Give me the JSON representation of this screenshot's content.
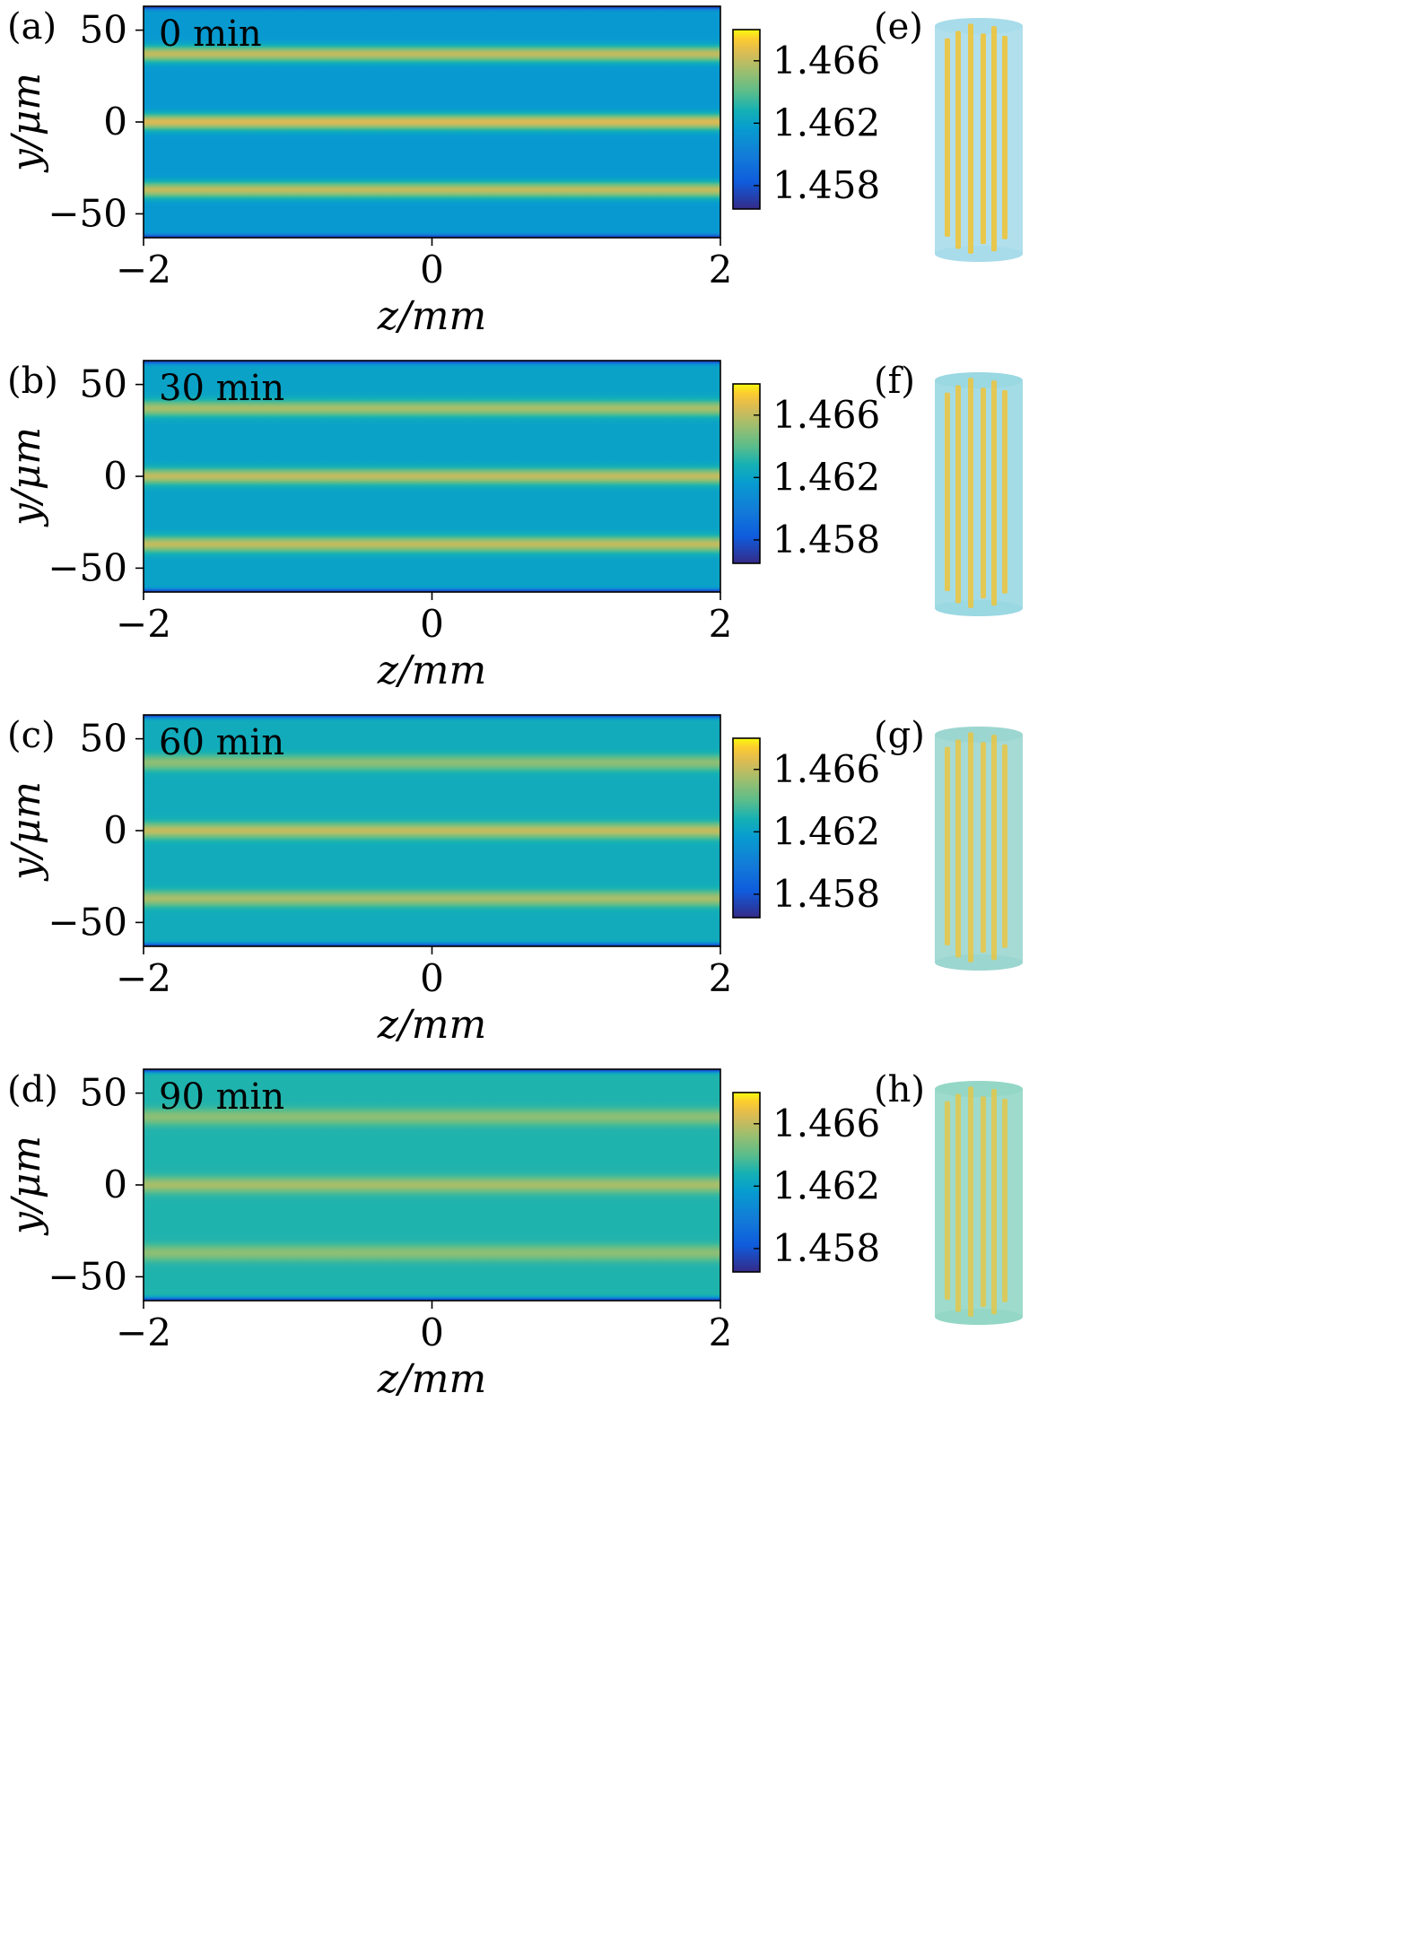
{
  "colors": {
    "background": "#1fa5b0",
    "line_bright": "#fcd83a",
    "line_edge": "#e6b43c",
    "edge_dark": "#3040c8",
    "cyl_body": "#9fd8e6",
    "cyl_rod": "#f2c331"
  },
  "chart_data": [
    {
      "type": "heatmap",
      "panel": "(a)",
      "time_label": "0 min",
      "xlabel": "z/mm",
      "ylabel": "y/μm",
      "xlim": [
        -2,
        2
      ],
      "ylim": [
        -63,
        63
      ],
      "x_ticks": [
        -2,
        0,
        2
      ],
      "x_tick_labels": [
        "−2",
        "0",
        "2"
      ],
      "y_ticks": [
        50,
        0,
        -50
      ],
      "y_tick_labels": [
        "50",
        "0",
        "−50"
      ],
      "colorbar": {
        "min": 1.4565,
        "max": 1.468,
        "ticks": [
          1.466,
          1.462,
          1.458
        ],
        "tick_labels": [
          "1.466",
          "1.462",
          "1.458"
        ]
      },
      "background_index": 1.4615,
      "waveguides": [
        {
          "y": 37,
          "peak": 1.466
        },
        {
          "y": 0,
          "peak": 1.4665
        },
        {
          "y": -37,
          "peak": 1.466
        }
      ]
    },
    {
      "type": "heatmap",
      "panel": "(b)",
      "time_label": "30 min",
      "xlabel": "z/mm",
      "ylabel": "y/μm",
      "xlim": [
        -2,
        2
      ],
      "ylim": [
        -63,
        63
      ],
      "x_ticks": [
        -2,
        0,
        2
      ],
      "x_tick_labels": [
        "−2",
        "0",
        "2"
      ],
      "y_ticks": [
        50,
        0,
        -50
      ],
      "y_tick_labels": [
        "50",
        "0",
        "−50"
      ],
      "colorbar": {
        "min": 1.4565,
        "max": 1.468,
        "ticks": [
          1.466,
          1.462,
          1.458
        ],
        "tick_labels": [
          "1.466",
          "1.462",
          "1.458"
        ]
      },
      "background_index": 1.462,
      "waveguides": [
        {
          "y": 37,
          "peak": 1.4655
        },
        {
          "y": 0,
          "peak": 1.466
        },
        {
          "y": -37,
          "peak": 1.466
        }
      ]
    },
    {
      "type": "heatmap",
      "panel": "(c)",
      "time_label": "60 min",
      "xlabel": "z/mm",
      "ylabel": "y/μm",
      "xlim": [
        -2,
        2
      ],
      "ylim": [
        -63,
        63
      ],
      "x_ticks": [
        -2,
        0,
        2
      ],
      "x_tick_labels": [
        "−2",
        "0",
        "2"
      ],
      "y_ticks": [
        50,
        0,
        -50
      ],
      "y_tick_labels": [
        "50",
        "0",
        "−50"
      ],
      "colorbar": {
        "min": 1.4565,
        "max": 1.468,
        "ticks": [
          1.466,
          1.462,
          1.458
        ],
        "tick_labels": [
          "1.466",
          "1.462",
          "1.458"
        ]
      },
      "background_index": 1.4625,
      "waveguides": [
        {
          "y": 37,
          "peak": 1.465
        },
        {
          "y": 0,
          "peak": 1.466
        },
        {
          "y": -37,
          "peak": 1.4655
        }
      ]
    },
    {
      "type": "heatmap",
      "panel": "(d)",
      "time_label": "90 min",
      "xlabel": "z/mm",
      "ylabel": "y/μm",
      "xlim": [
        -2,
        2
      ],
      "ylim": [
        -63,
        63
      ],
      "x_ticks": [
        -2,
        0,
        2
      ],
      "x_tick_labels": [
        "−2",
        "0",
        "2"
      ],
      "y_ticks": [
        50,
        0,
        -50
      ],
      "y_tick_labels": [
        "50",
        "0",
        "−50"
      ],
      "colorbar": {
        "min": 1.4565,
        "max": 1.468,
        "ticks": [
          1.466,
          1.462,
          1.458
        ],
        "tick_labels": [
          "1.466",
          "1.462",
          "1.458"
        ]
      },
      "background_index": 1.463,
      "waveguides": [
        {
          "y": 37,
          "peak": 1.465
        },
        {
          "y": 0,
          "peak": 1.4655
        },
        {
          "y": -37,
          "peak": 1.465
        }
      ]
    }
  ],
  "renderings": [
    {
      "panel": "(e)",
      "icon": "cylinder-waveguide-3d"
    },
    {
      "panel": "(f)",
      "icon": "cylinder-waveguide-3d"
    },
    {
      "panel": "(g)",
      "icon": "cylinder-waveguide-3d"
    },
    {
      "panel": "(h)",
      "icon": "cylinder-waveguide-3d"
    }
  ]
}
